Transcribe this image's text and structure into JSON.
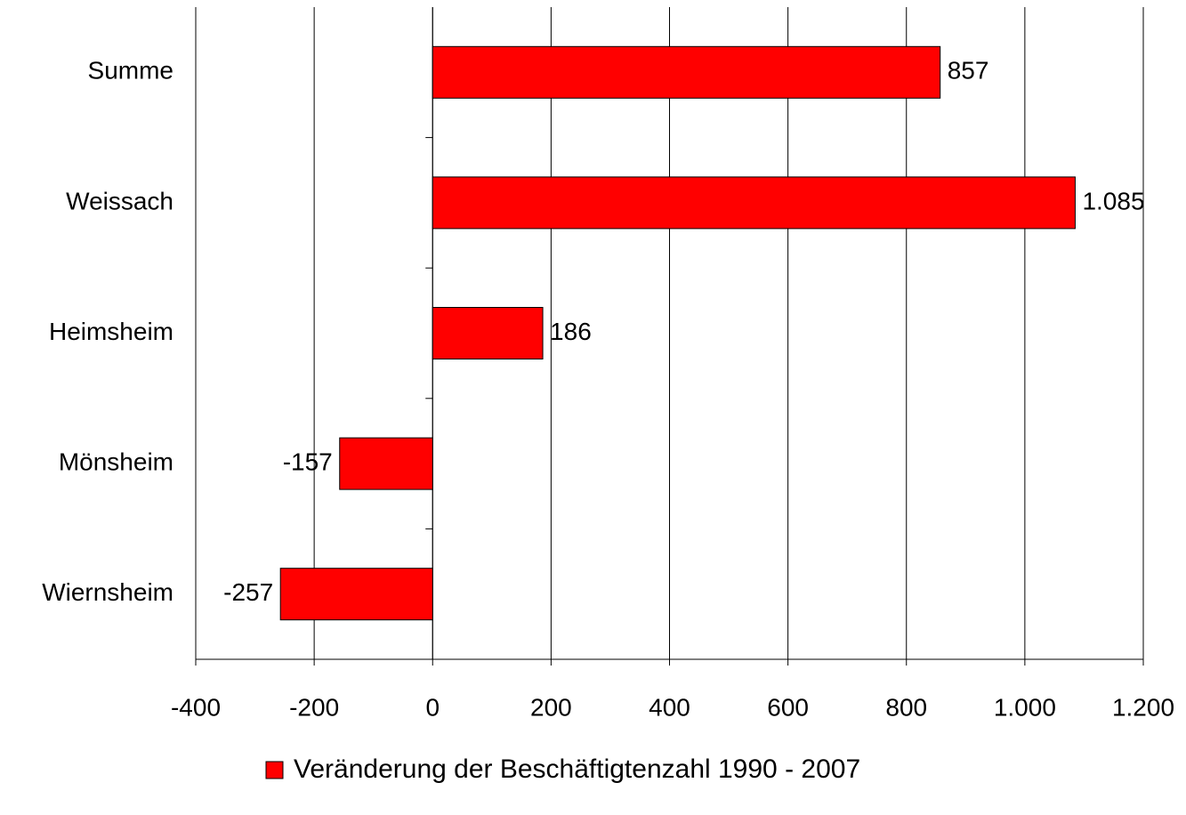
{
  "chart_data": {
    "type": "barh",
    "categories": [
      "Summe",
      "Weissach",
      "Heimsheim",
      "Mönsheim",
      "Wiernsheim"
    ],
    "series": [
      {
        "name": "Veränderung der Beschäftigtenzahl 1990 - 2007",
        "color": "#ff0000",
        "values": [
          857,
          1085,
          186,
          -157,
          -257
        ],
        "value_labels": [
          "857",
          "1.085",
          "186",
          "-157",
          "-257"
        ]
      }
    ],
    "xlim": [
      -400,
      1200
    ],
    "xticks": [
      -400,
      -200,
      0,
      200,
      400,
      600,
      800,
      {
        "value": 1000,
        "label": "1.000"
      },
      {
        "value": 1200,
        "label": "1.200"
      }
    ],
    "grid": true,
    "legend": "bottom"
  }
}
